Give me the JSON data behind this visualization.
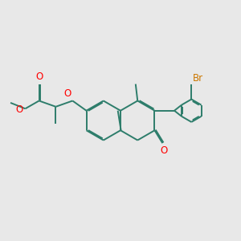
{
  "bg_color": "#e8e8e8",
  "bond_color": "#2d7d6b",
  "oxygen_color": "#ff0000",
  "bromine_color": "#cc7700",
  "lw": 1.4,
  "dbo": 0.055,
  "figsize": [
    3.0,
    3.0
  ],
  "dpi": 100,
  "xlim": [
    0,
    12
  ],
  "ylim": [
    0,
    10
  ]
}
